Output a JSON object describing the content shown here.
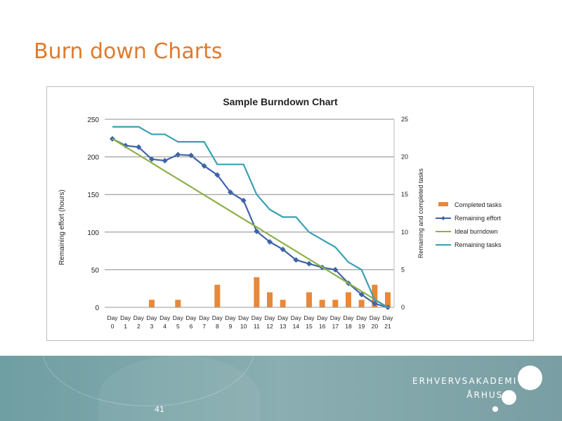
{
  "slide": {
    "title": "Burn down Charts",
    "page_number": "41",
    "logo": {
      "line1": "ERHVERVSAKADEMI",
      "line2": "ÅRHUS"
    }
  },
  "colors": {
    "title": "#e07a2e",
    "completed_tasks": "#e8883a",
    "remaining_effort": "#3e64a8",
    "ideal_burndown": "#8db04a",
    "remaining_tasks": "#3aa0b0"
  },
  "chart_data": {
    "type": "bar+line",
    "title": "Sample Burndown Chart",
    "ylabel": "Remaining effort (hours)",
    "y2label": "Remaining and completed tasks",
    "ylim": [
      0,
      250
    ],
    "y2lim": [
      0,
      25
    ],
    "yticks": [
      "0",
      "50",
      "100",
      "150",
      "200",
      "250"
    ],
    "y2ticks": [
      "0",
      "5",
      "10",
      "15",
      "20",
      "25"
    ],
    "grid": true,
    "legend": "right",
    "categories": [
      "Day 0",
      "Day 1",
      "Day 2",
      "Day 3",
      "Day 4",
      "Day 5",
      "Day 6",
      "Day 7",
      "Day 8",
      "Day 9",
      "Day 10",
      "Day 11",
      "Day 12",
      "Day 13",
      "Day 14",
      "Day 15",
      "Day 16",
      "Day 17",
      "Day 18",
      "Day 19",
      "Day 20",
      "Day 21"
    ],
    "series": [
      {
        "name": "Completed tasks",
        "type": "bar",
        "axis": "right",
        "values": [
          0,
          0,
          0,
          1,
          0,
          1,
          0,
          0,
          3,
          0,
          0,
          4,
          2,
          1,
          0,
          2,
          1,
          1,
          2,
          1,
          3,
          2
        ]
      },
      {
        "name": "Remaining effort",
        "type": "line",
        "axis": "left",
        "markers": "diamond",
        "values": [
          224,
          215,
          213,
          197,
          195,
          203,
          202,
          188,
          176,
          153,
          142,
          101,
          87,
          77,
          63,
          58,
          53,
          50,
          32,
          17,
          5,
          0
        ]
      },
      {
        "name": "Ideal burndown",
        "type": "line",
        "axis": "left",
        "values": [
          224,
          213.3,
          202.7,
          192,
          181.3,
          170.7,
          160,
          149.3,
          138.7,
          128,
          117.3,
          106.7,
          96,
          85.3,
          74.7,
          64,
          53.3,
          42.7,
          32,
          21.3,
          10.7,
          0
        ]
      },
      {
        "name": "Remaining tasks",
        "type": "line",
        "axis": "right",
        "values": [
          24,
          24,
          24,
          23,
          23,
          22,
          22,
          22,
          19,
          19,
          19,
          15,
          13,
          12,
          12,
          10,
          9,
          8,
          6,
          5,
          1,
          0
        ]
      }
    ]
  }
}
